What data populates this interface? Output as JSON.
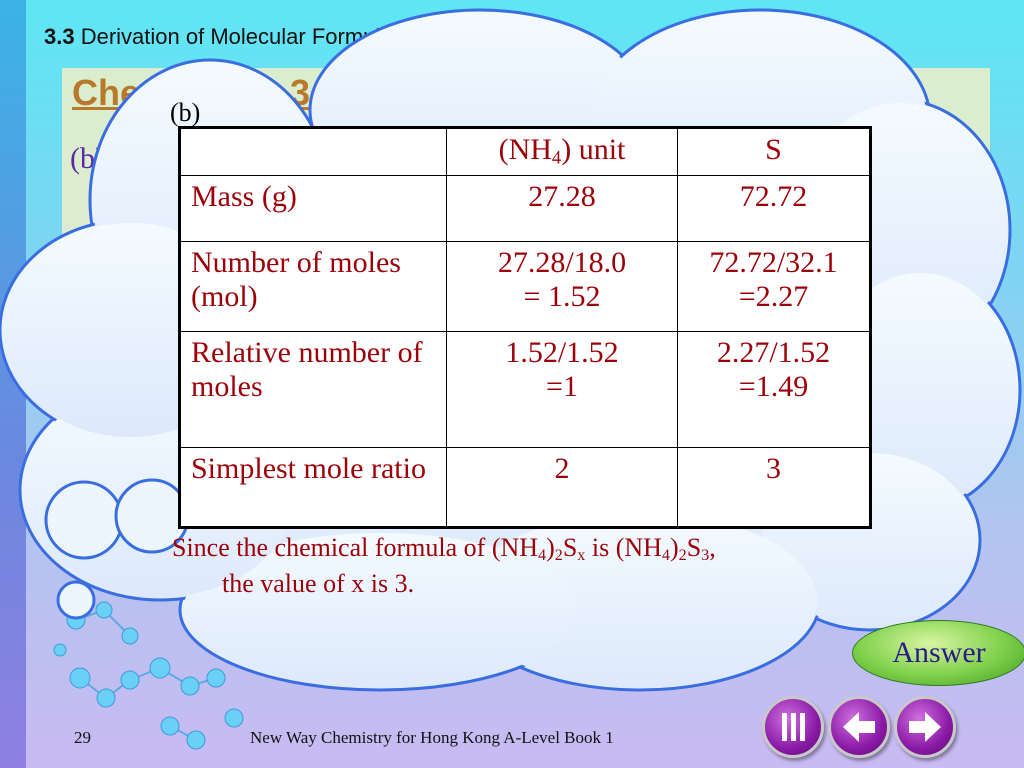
{
  "header": {
    "section_number": "3.3",
    "section_title": "Derivation of Molecular Formulae (SE)"
  },
  "background": {
    "check_title": "Check Point 3-3",
    "part_label": "(b)"
  },
  "bubble": {
    "part_label": "(b)"
  },
  "table": {
    "header": {
      "col0": "",
      "col1_main": "(NH",
      "col1_sub": "4",
      "col1_rest": ") unit",
      "col2": "S"
    },
    "rows": [
      {
        "label": "Mass (g)",
        "c1": [
          "27.28"
        ],
        "c2": [
          "72.72"
        ]
      },
      {
        "label": "Number of moles (mol)",
        "c1": [
          "27.28/18.0",
          "= 1.52"
        ],
        "c2": [
          "72.72/32.1",
          "=2.27"
        ]
      },
      {
        "label": "Relative number of moles",
        "c1": [
          "1.52/1.52",
          "=1"
        ],
        "c2": [
          "2.27/1.52",
          "=1.49"
        ]
      },
      {
        "label": "Simplest mole ratio",
        "c1": [
          "2"
        ],
        "c2": [
          "3"
        ]
      }
    ]
  },
  "conclusion": {
    "p1": "Since the chemical formula of (NH",
    "s1": "4",
    "p2": ")",
    "s2": "2",
    "p3": "S",
    "s3": "x",
    "p4": " is (NH",
    "s4": "4",
    "p5": ")",
    "s5": "2",
    "p6": "S",
    "s6": "3",
    "p7": ",",
    "line2": "the value of x is 3."
  },
  "answer_button": "Answer",
  "footer": {
    "page_number": "29",
    "book_title": "New Way Chemistry for Hong Kong A-Level Book 1"
  },
  "nav": {
    "icons": [
      "menu-icon",
      "arrow-left-icon",
      "arrow-right-icon"
    ]
  },
  "colors": {
    "red_text": "#9c0008",
    "purple_button": "#8a1aa6",
    "answer_green": "#7fd04a",
    "bubble_outline": "#3a6ee0"
  }
}
